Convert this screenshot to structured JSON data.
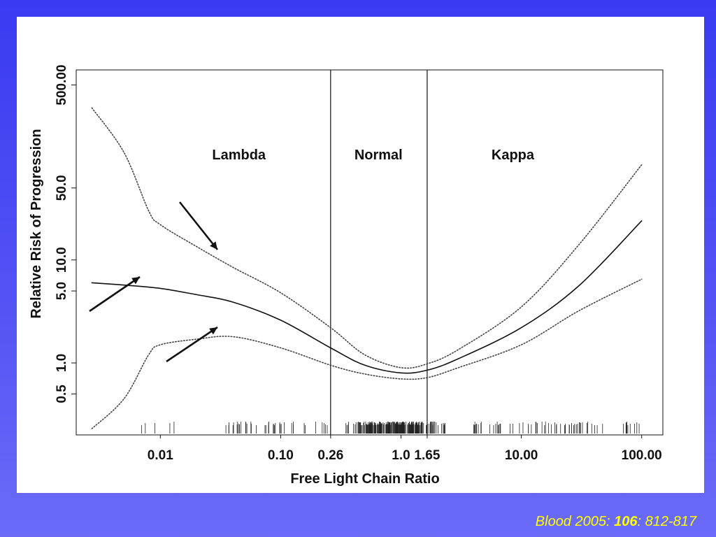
{
  "chart_data": {
    "type": "line",
    "title": "",
    "xlabel": "Free Light Chain Ratio",
    "ylabel": "Relative Risk of Progression",
    "x_scale": "log",
    "y_scale": "log",
    "xlim": [
      0.002,
      150
    ],
    "ylim": [
      0.2,
      700
    ],
    "x_ticks": [
      {
        "value": 0.01,
        "label": "0.01"
      },
      {
        "value": 0.1,
        "label": "0.10"
      },
      {
        "value": 0.26,
        "label": "0.26"
      },
      {
        "value": 1.0,
        "label": "1.0"
      },
      {
        "value": 1.65,
        "label": "1.65"
      },
      {
        "value": 10.0,
        "label": "10.00"
      },
      {
        "value": 100.0,
        "label": "100.00"
      }
    ],
    "y_ticks": [
      {
        "value": 0.5,
        "label": "0.5"
      },
      {
        "value": 1.0,
        "label": "1.0"
      },
      {
        "value": 5.0,
        "label": "5.0"
      },
      {
        "value": 10.0,
        "label": "10.0"
      },
      {
        "value": 50.0,
        "label": "50.0"
      },
      {
        "value": 500.0,
        "label": "500.00"
      }
    ],
    "vertical_lines": [
      0.26,
      1.65
    ],
    "region_labels": [
      {
        "text": "Lambda",
        "x": 0.045,
        "y": 95
      },
      {
        "text": "Normal",
        "x": 0.65,
        "y": 95
      },
      {
        "text": "Kappa",
        "x": 8.5,
        "y": 95
      }
    ],
    "series": [
      {
        "style": "solid",
        "x": [
          0.0027,
          0.005,
          0.01,
          0.02,
          0.04,
          0.1,
          0.26,
          0.5,
          1.0,
          1.65,
          3.0,
          10.0,
          30.0,
          100.0
        ],
        "y": [
          6.0,
          5.7,
          5.3,
          4.6,
          3.9,
          2.6,
          1.4,
          0.95,
          0.8,
          0.85,
          1.1,
          2.2,
          5.6,
          24
        ]
      },
      {
        "style": "dotted",
        "x": [
          0.0027,
          0.005,
          0.008,
          0.01,
          0.02,
          0.04,
          0.1,
          0.26,
          0.5,
          1.0,
          1.65,
          3.0,
          10.0,
          30.0,
          100.0
        ],
        "y": [
          300,
          110,
          30,
          22,
          13.5,
          8.5,
          4.8,
          2.2,
          1.2,
          0.9,
          0.98,
          1.35,
          3.5,
          14,
          84
        ]
      },
      {
        "style": "dotted",
        "x": [
          0.0027,
          0.005,
          0.008,
          0.01,
          0.02,
          0.04,
          0.1,
          0.26,
          0.5,
          1.0,
          1.65,
          3.0,
          10.0,
          30.0,
          100.0
        ],
        "y": [
          0.23,
          0.45,
          1.2,
          1.5,
          1.7,
          1.8,
          1.4,
          0.95,
          0.78,
          0.7,
          0.72,
          0.9,
          1.5,
          3.2,
          6.5
        ]
      }
    ]
  },
  "citation": {
    "journal": "Blood 2005:",
    "volume": "106",
    "pages": ": 812-817"
  },
  "colors": {
    "background": "#4646f4",
    "panel": "#ffffff",
    "citation": "#ffff00",
    "ink": "#111111"
  }
}
